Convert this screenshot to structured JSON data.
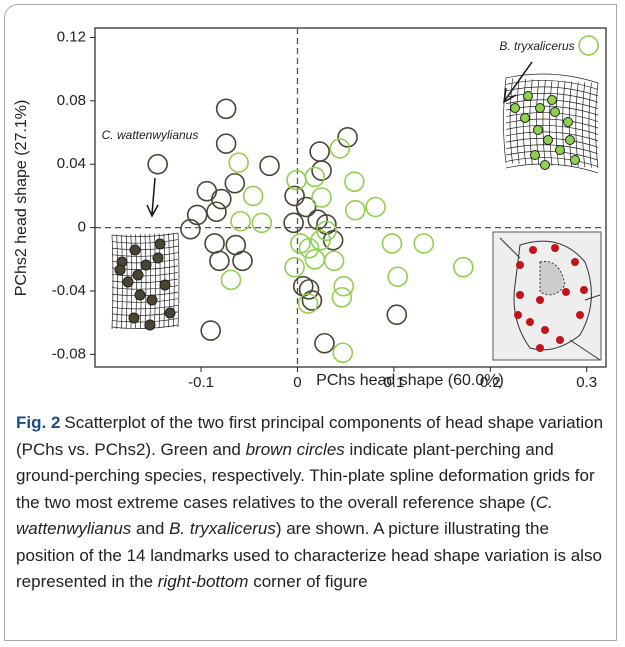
{
  "chart_data": {
    "type": "scatter",
    "x_label": "PChs head shape (60.0%)",
    "y_label": "PChs2 head shape (27.1%)",
    "xlim": [
      -0.21,
      0.32
    ],
    "ylim": [
      -0.088,
      0.126
    ],
    "xticks": [
      -0.1,
      0,
      0.1,
      0.2,
      0.3
    ],
    "yticks": [
      0.12,
      0.08,
      0.04,
      0,
      -0.04,
      -0.08
    ],
    "annotations": [
      "C. wattenwylianus",
      "B. tryxalicerus"
    ],
    "series": [
      {
        "color": "#4a4433",
        "x": [
          -0.145,
          -0.074,
          -0.074,
          -0.029,
          -0.065,
          -0.094,
          -0.079,
          -0.104,
          -0.084,
          -0.111,
          -0.086,
          -0.064,
          -0.081,
          -0.057,
          -0.09,
          0.052,
          0.023,
          -0.003,
          0.009,
          0.021,
          -0.004,
          0.03,
          0.037,
          0.006,
          0.012,
          0.015,
          0.028,
          0.103,
          0.025
        ],
        "values": [
          0.04,
          0.075,
          0.053,
          0.039,
          0.028,
          0.023,
          0.018,
          0.008,
          0.01,
          -0.001,
          -0.01,
          -0.011,
          -0.021,
          -0.021,
          -0.065,
          0.057,
          0.048,
          0.02,
          0.013,
          0.005,
          0.003,
          0.002,
          -0.008,
          -0.037,
          -0.039,
          -0.046,
          -0.073,
          -0.055,
          0.036
        ]
      },
      {
        "color": "#8fd14f",
        "x": [
          0.302,
          -0.059,
          -0.046,
          -0.037,
          -0.069,
          -0.061,
          -0.001,
          0.044,
          0.018,
          0.025,
          0.06,
          0.059,
          0.081,
          0.03,
          0.024,
          0.012,
          0.018,
          0.003,
          0.038,
          0.048,
          0.046,
          0.098,
          0.104,
          0.131,
          0.172,
          0.047,
          0.011,
          -0.003
        ],
        "values": [
          0.115,
          0.004,
          0.02,
          0.003,
          -0.033,
          0.041,
          0.03,
          0.05,
          0.032,
          0.019,
          0.011,
          0.029,
          0.013,
          -0.002,
          -0.008,
          -0.013,
          -0.02,
          -0.01,
          -0.021,
          -0.037,
          -0.044,
          -0.01,
          -0.031,
          -0.01,
          -0.025,
          -0.079,
          -0.048,
          -0.025
        ]
      }
    ]
  },
  "caption": {
    "label": "Fig. 2",
    "segments": [
      {
        "text": "Scatterplot of the two first principal components of head shape variation (PChs vs. PChs2). Green and ",
        "italic": false
      },
      {
        "text": "brown circles",
        "italic": true
      },
      {
        "text": " indicate plant-perching and ground-perching species, respectively. Thin-plate spline deformation grids for the two most extreme cases relatives to the overall reference shape (",
        "italic": false
      },
      {
        "text": "C. wattenwylianus",
        "italic": true
      },
      {
        "text": " and ",
        "italic": false
      },
      {
        "text": "B. tryxalicerus",
        "italic": true
      },
      {
        "text": ") are shown. A picture illustrating the position of the 14 landmarks used to characterize head shape variation is also represented in the ",
        "italic": false
      },
      {
        "text": "right-bottom",
        "italic": true
      },
      {
        "text": " corner of figure",
        "italic": false
      }
    ]
  }
}
